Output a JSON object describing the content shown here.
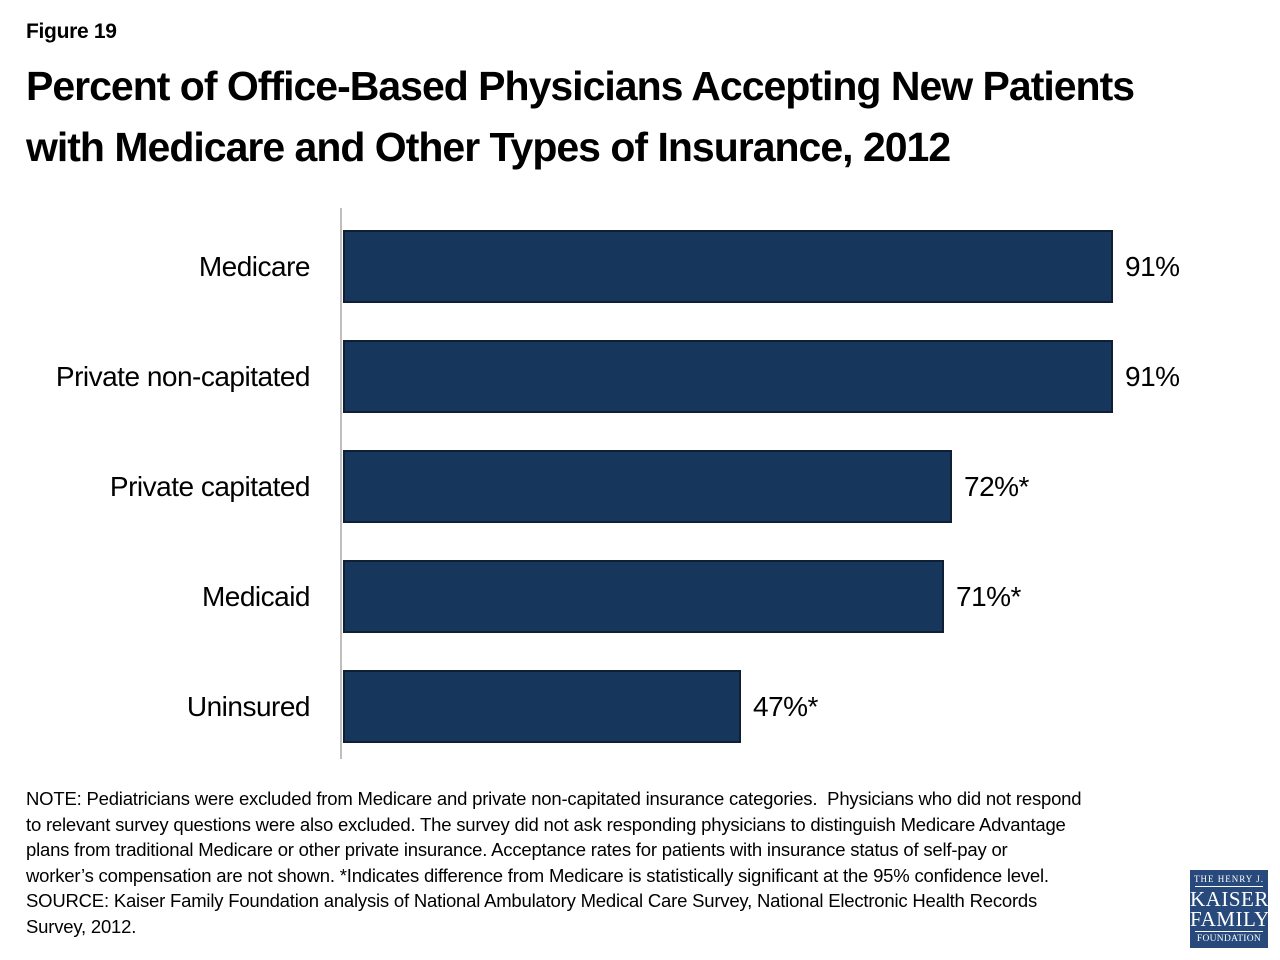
{
  "header": {
    "figure_label": "Figure 19",
    "title_line1": "Percent of Office-Based Physicians Accepting New Patients",
    "title_line2": "with Medicare and Other Types of Insurance, 2012"
  },
  "chart_data": {
    "type": "bar",
    "orientation": "horizontal",
    "title": "Percent of Office-Based Physicians Accepting New Patients with Medicare and Other Types of Insurance, 2012",
    "categories": [
      "Medicare",
      "Private non-capitated",
      "Private capitated",
      "Medicaid",
      "Uninsured"
    ],
    "values": [
      91,
      91,
      72,
      71,
      47
    ],
    "value_labels": [
      "91%",
      "91%",
      "72%*",
      "71%*",
      "47%*"
    ],
    "xlim": [
      0,
      100
    ],
    "unit": "%",
    "grid": false,
    "legend": false,
    "bar_color": "#16365C",
    "bar_border_color": "#0E1F36",
    "axis_line_color": "#BFBFBF"
  },
  "notes": {
    "lines": [
      "NOTE: Pediatricians were excluded from Medicare and private non-capitated insurance categories.  Physicians who did not respond",
      "to relevant survey questions were also excluded. The survey did not ask responding physicians to distinguish Medicare Advantage",
      "plans from traditional Medicare or other private insurance. Acceptance rates for patients with insurance status of self-pay or",
      "worker’s compensation are not shown. *Indicates difference from Medicare is statistically significant at the 95% confidence level.",
      "SOURCE: Kaiser Family Foundation analysis of National Ambulatory Medical Care Survey, National Electronic Health Records",
      "Survey, 2012."
    ]
  },
  "logo": {
    "line1": "THE HENRY J.",
    "line2": "KAISER",
    "line3": "FAMILY",
    "line4": "FOUNDATION",
    "background": "#28497B"
  }
}
